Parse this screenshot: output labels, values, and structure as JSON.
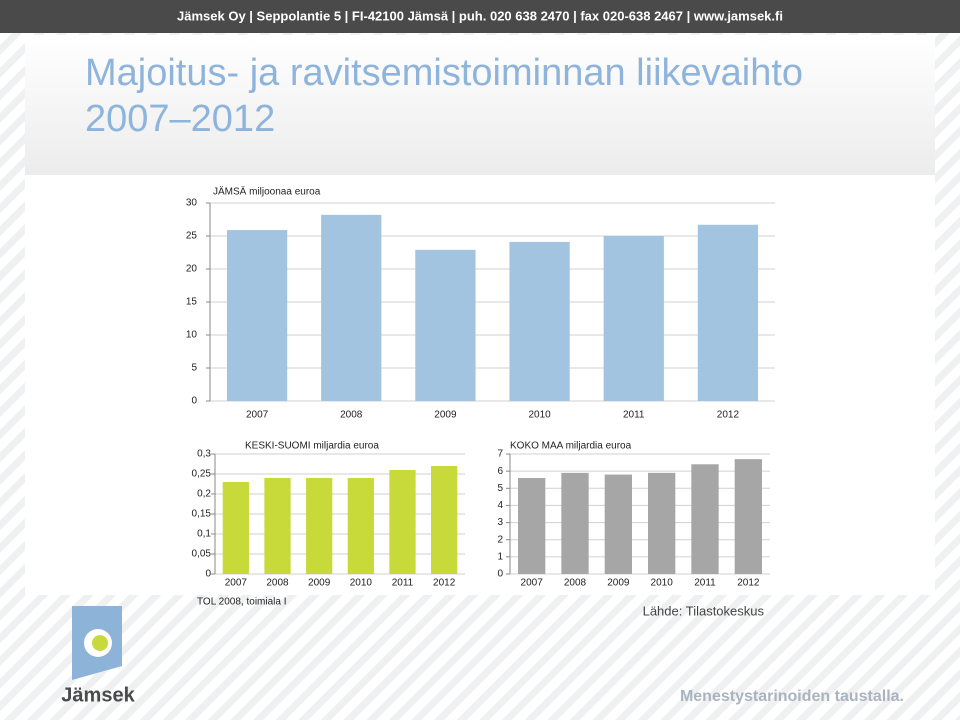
{
  "header": "Jämsek Oy  |  Seppolantie 5  |  FI-42100 Jämsä  |  puh. 020 638 2470  |  fax 020-638 2467  |  www.jamsek.fi",
  "title": [
    "Majoitus- ja ravitsemistoiminnan liikevaihto",
    "2007–2012"
  ],
  "chart_data": [
    {
      "type": "bar",
      "title": "JÄMSÄ miljoonaa euroa",
      "categories": [
        "2007",
        "2008",
        "2009",
        "2010",
        "2011",
        "2012"
      ],
      "values": [
        25.9,
        28.2,
        22.9,
        24.1,
        25.0,
        26.7
      ],
      "color": "#a3c4e0",
      "ylim": [
        0,
        30
      ],
      "yticks": [
        0,
        5,
        10,
        15,
        20,
        25,
        30
      ],
      "grid": true
    },
    {
      "type": "bar",
      "title": "KESKI-SUOMI miljardia euroa",
      "categories": [
        "2007",
        "2008",
        "2009",
        "2010",
        "2011",
        "2012"
      ],
      "values": [
        0.23,
        0.24,
        0.24,
        0.24,
        0.26,
        0.27
      ],
      "color": "#c8d93a",
      "ylim": [
        0,
        0.3
      ],
      "yticks": [
        0,
        {
          "value": 0.05,
          "label": "0,05"
        },
        {
          "value": 0.1,
          "label": "0,1"
        },
        {
          "value": 0.15,
          "label": "0,15"
        },
        {
          "value": 0.2,
          "label": "0,2"
        },
        {
          "value": 0.25,
          "label": "0,25"
        },
        {
          "value": 0.3,
          "label": "0,3"
        }
      ],
      "grid": true
    },
    {
      "type": "bar",
      "title": "KOKO MAA miljardia euroa",
      "categories": [
        "2007",
        "2008",
        "2009",
        "2010",
        "2011",
        "2012"
      ],
      "values": [
        5.6,
        5.9,
        5.8,
        5.9,
        6.4,
        6.7
      ],
      "color": "#a6a6a6",
      "ylim": [
        0,
        7
      ],
      "yticks": [
        0,
        1,
        2,
        3,
        4,
        5,
        6,
        7
      ],
      "grid": true
    }
  ],
  "note": "TOL 2008, toimiala I",
  "source": "Lähde: Tilastokeskus",
  "logo": "Jämsek",
  "slogan": "Menestystarinoiden taustalla."
}
